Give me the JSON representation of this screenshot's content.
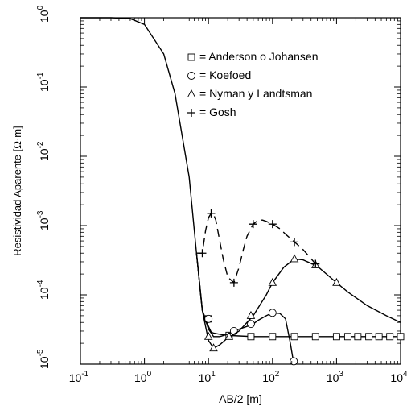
{
  "chart_data": {
    "type": "line",
    "xscale": "log",
    "yscale": "log",
    "xlim": [
      0.1,
      10000
    ],
    "ylim": [
      1e-05,
      1
    ],
    "xlabel": "AB/2 [m]",
    "ylabel": "Resistividad Aparente [Ω·m]",
    "x_ticks": [
      {
        "value": 0.1,
        "base": "10",
        "exp": "-1"
      },
      {
        "value": 1,
        "base": "10",
        "exp": "0"
      },
      {
        "value": 10,
        "base": "10",
        "exp": "1"
      },
      {
        "value": 100,
        "base": "10",
        "exp": "2"
      },
      {
        "value": 1000,
        "base": "10",
        "exp": "3"
      },
      {
        "value": 10000,
        "base": "10",
        "exp": "4"
      }
    ],
    "y_ticks": [
      {
        "value": 1e-05,
        "base": "10",
        "exp": "-5"
      },
      {
        "value": 0.0001,
        "base": "10",
        "exp": "-4"
      },
      {
        "value": 0.001,
        "base": "10",
        "exp": "-3"
      },
      {
        "value": 0.01,
        "base": "10",
        "exp": "-2"
      },
      {
        "value": 0.1,
        "base": "10",
        "exp": "-1"
      },
      {
        "value": 1,
        "base": "10",
        "exp": "0"
      }
    ],
    "legend_position": "top-right",
    "series": [
      {
        "name": "= Anderson o Johansen",
        "marker": "square",
        "line": "solid",
        "x": [
          0.1,
          0.3,
          0.6,
          1,
          2,
          3,
          5,
          6.5,
          8,
          10,
          11,
          12,
          15,
          20,
          30,
          50,
          100,
          200,
          500,
          1000,
          2000,
          5000,
          10000
        ],
        "y": [
          1,
          1,
          0.97,
          0.8,
          0.3,
          0.08,
          0.005,
          0.0004,
          6e-05,
          3.5e-05,
          2.9e-05,
          2.8e-05,
          2.7e-05,
          2.6e-05,
          2.55e-05,
          2.5e-05,
          2.5e-05,
          2.5e-05,
          2.5e-05,
          2.5e-05,
          2.5e-05,
          2.5e-05,
          2.5e-05
        ],
        "marker_x": [
          10,
          21,
          46,
          100,
          220,
          470,
          1000,
          1500,
          2150,
          3200,
          4600,
          6800,
          10000
        ],
        "marker_y": [
          4.5e-05,
          2.6e-05,
          2.5e-05,
          2.5e-05,
          2.5e-05,
          2.5e-05,
          2.5e-05,
          2.5e-05,
          2.5e-05,
          2.5e-05,
          2.5e-05,
          2.5e-05,
          2.5e-05
        ]
      },
      {
        "name": "= Koefoed",
        "marker": "circle",
        "line": "solid",
        "x": [
          6.5,
          8,
          10,
          12,
          15,
          20,
          25,
          30,
          40,
          50,
          60,
          80,
          100,
          130,
          160,
          190,
          215
        ],
        "y": [
          0.0004,
          6e-05,
          3.2e-05,
          2.5e-05,
          2.5e-05,
          2.7e-05,
          3e-05,
          3.2e-05,
          3.5e-05,
          3.8e-05,
          4.3e-05,
          5e-05,
          5.5e-05,
          5.4e-05,
          4.5e-05,
          2e-05,
          1e-05
        ],
        "marker_x": [
          10,
          25,
          46,
          100,
          215
        ],
        "marker_y": [
          4.5e-05,
          3e-05,
          3.8e-05,
          5.5e-05,
          1.1e-05
        ]
      },
      {
        "name": "= Nyman y Landtsman",
        "marker": "triangle",
        "line": "solid",
        "x": [
          6.5,
          8,
          9,
          10,
          12,
          15,
          20,
          30,
          50,
          80,
          100,
          150,
          220,
          300,
          500,
          1000,
          1500,
          3000,
          6000,
          10000
        ],
        "y": [
          0.0004,
          6e-05,
          3.5e-05,
          2.2e-05,
          1.7e-05,
          1.9e-05,
          2.4e-05,
          3e-05,
          5e-05,
          0.0001,
          0.00015,
          0.00025,
          0.00033,
          0.00032,
          0.00026,
          0.00015,
          0.00011,
          7e-05,
          5e-05,
          4e-05
        ],
        "marker_x": [
          10,
          12,
          21,
          46,
          100,
          220,
          470,
          1000
        ],
        "marker_y": [
          2.5e-05,
          1.7e-05,
          2.5e-05,
          5e-05,
          0.00015,
          0.00033,
          0.00027,
          0.00015
        ]
      },
      {
        "name": "= Gosh",
        "marker": "plus",
        "line": "dashed",
        "x": [
          6.5,
          8,
          9,
          10,
          11,
          12,
          13,
          15,
          17,
          20,
          25,
          30,
          35,
          40,
          50,
          60,
          70,
          80,
          100,
          130,
          160,
          220,
          300,
          470
        ],
        "y": [
          0.0004,
          0.0004,
          0.00085,
          0.0013,
          0.0015,
          0.00145,
          0.0012,
          0.0006,
          0.00033,
          0.00018,
          0.00015,
          0.00025,
          0.00045,
          0.0007,
          0.00105,
          0.0012,
          0.0012,
          0.00115,
          0.00105,
          0.0009,
          0.00075,
          0.00058,
          0.00045,
          0.00028
        ],
        "marker_x": [
          8,
          11,
          25,
          50,
          100,
          220,
          470
        ],
        "marker_y": [
          0.0004,
          0.0015,
          0.00015,
          0.00105,
          0.00105,
          0.00058,
          0.00028
        ]
      }
    ]
  }
}
